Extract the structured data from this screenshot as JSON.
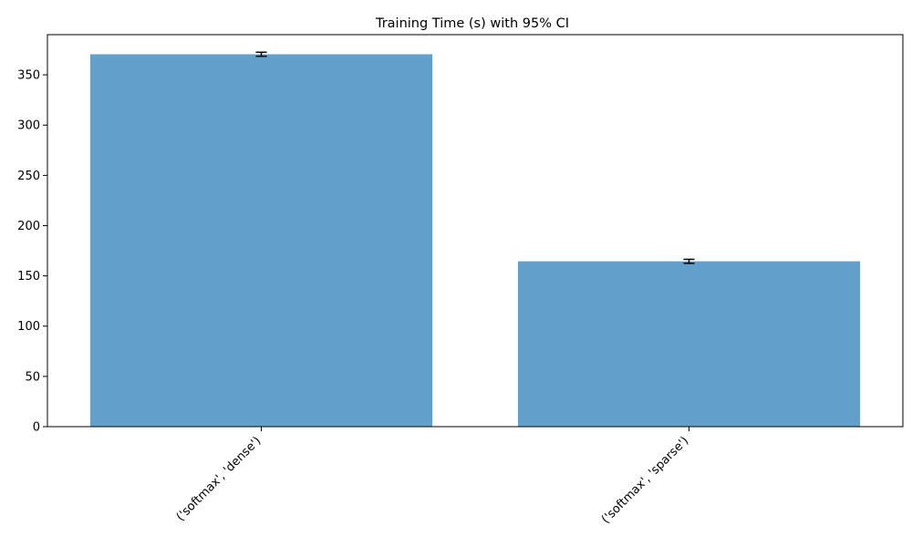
{
  "chart_data": {
    "type": "bar",
    "title": "Training Time (s) with 95% CI",
    "xlabel": "",
    "ylabel": "",
    "categories": [
      "('softmax', 'dense')",
      "('softmax', 'sparse')"
    ],
    "values": [
      370.5,
      164.5
    ],
    "ci_lower": [
      368.5,
      162.5
    ],
    "ci_upper": [
      372.5,
      166.5
    ],
    "ylim": [
      0,
      390
    ],
    "yticks": [
      0,
      50,
      100,
      150,
      200,
      250,
      300,
      350
    ],
    "bar_color": "#62a0cb",
    "grid": false,
    "legend": "none"
  }
}
